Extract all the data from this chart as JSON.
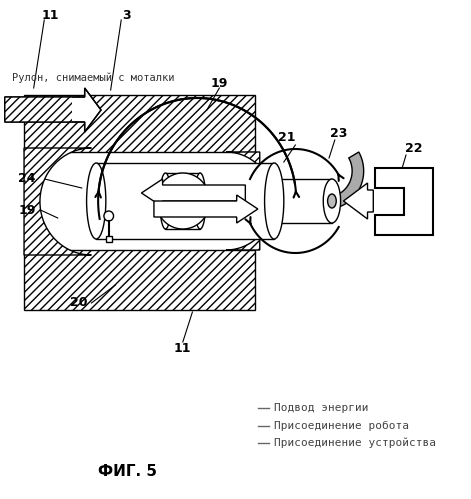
{
  "title": "ФИГ. 5",
  "label_11_top": "11",
  "label_3": "3",
  "label_roll_text": "Рулон, снимаемый с моталки",
  "label_19_top": "19",
  "label_21": "21",
  "label_23": "23",
  "label_24": "24",
  "label_19_left": "19",
  "label_20": "20",
  "label_11_bottom": "11",
  "label_22": "22",
  "legend1": "Подвод энергии",
  "legend2": "Присоединение робота",
  "legend3": "Присоединение устройства",
  "bg_color": "#ffffff",
  "line_color": "#000000"
}
